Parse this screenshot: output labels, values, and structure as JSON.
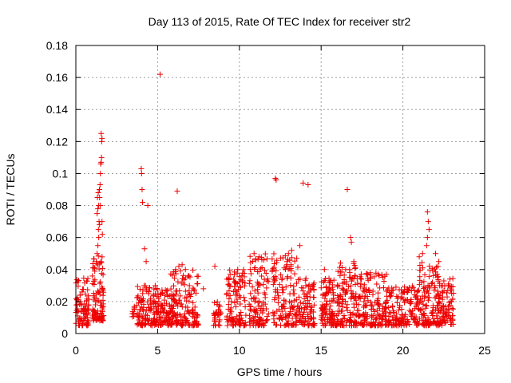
{
  "chart_data": {
    "type": "scatter",
    "title": "Day 113 of 2015, Rate Of TEC Index for receiver str2",
    "xlabel": "GPS time / hours",
    "ylabel": "ROTI / TECUs",
    "xlim": [
      0,
      25
    ],
    "ylim": [
      0,
      0.18
    ],
    "xticks": [
      "0",
      "5",
      "10",
      "15",
      "20",
      "25"
    ],
    "yticks": [
      "0",
      "0.02",
      "0.04",
      "0.06",
      "0.08",
      "0.1",
      "0.12",
      "0.14",
      "0.16",
      "0.18"
    ],
    "grid": true,
    "marker": "+",
    "color": "#ee0000",
    "series": [
      {
        "name": "str2",
        "clusters": [
          {
            "x_range": [
              0.0,
              0.8
            ],
            "y_range": [
              0.005,
              0.035
            ],
            "count": 90
          },
          {
            "x_range": [
              1.0,
              1.7
            ],
            "y_range": [
              0.008,
              0.05
            ],
            "count": 100
          },
          {
            "x_range": [
              3.4,
              3.6
            ],
            "y_range": [
              0.01,
              0.02
            ],
            "count": 10
          },
          {
            "x_range": [
              3.7,
              5.0
            ],
            "y_range": [
              0.005,
              0.03
            ],
            "count": 120
          },
          {
            "x_range": [
              5.0,
              6.0
            ],
            "y_range": [
              0.005,
              0.028
            ],
            "count": 90
          },
          {
            "x_range": [
              5.8,
              7.5
            ],
            "y_range": [
              0.005,
              0.04
            ],
            "count": 140
          },
          {
            "x_range": [
              8.4,
              8.9
            ],
            "y_range": [
              0.005,
              0.02
            ],
            "count": 30
          },
          {
            "x_range": [
              9.2,
              10.4
            ],
            "y_range": [
              0.005,
              0.04
            ],
            "count": 110
          },
          {
            "x_range": [
              10.6,
              11.8
            ],
            "y_range": [
              0.005,
              0.05
            ],
            "count": 110
          },
          {
            "x_range": [
              12.0,
              13.6
            ],
            "y_range": [
              0.005,
              0.05
            ],
            "count": 140
          },
          {
            "x_range": [
              13.6,
              14.6
            ],
            "y_range": [
              0.005,
              0.035
            ],
            "count": 90
          },
          {
            "x_range": [
              15.0,
              16.0
            ],
            "y_range": [
              0.005,
              0.035
            ],
            "count": 110
          },
          {
            "x_range": [
              16.0,
              17.2
            ],
            "y_range": [
              0.005,
              0.045
            ],
            "count": 120
          },
          {
            "x_range": [
              17.2,
              19.0
            ],
            "y_range": [
              0.005,
              0.038
            ],
            "count": 160
          },
          {
            "x_range": [
              19.0,
              21.0
            ],
            "y_range": [
              0.005,
              0.03
            ],
            "count": 160
          },
          {
            "x_range": [
              21.0,
              22.2
            ],
            "y_range": [
              0.005,
              0.045
            ],
            "count": 130
          },
          {
            "x_range": [
              22.2,
              23.1
            ],
            "y_range": [
              0.005,
              0.035
            ],
            "count": 90
          }
        ],
        "points": [
          [
            1.35,
            0.055
          ],
          [
            1.4,
            0.06
          ],
          [
            1.38,
            0.065
          ],
          [
            1.42,
            0.07
          ],
          [
            1.45,
            0.068
          ],
          [
            1.3,
            0.075
          ],
          [
            1.35,
            0.078
          ],
          [
            1.4,
            0.08
          ],
          [
            1.32,
            0.085
          ],
          [
            1.37,
            0.088
          ],
          [
            1.44,
            0.09
          ],
          [
            1.48,
            0.093
          ],
          [
            1.5,
            0.1
          ],
          [
            1.52,
            0.106
          ],
          [
            1.55,
            0.107
          ],
          [
            1.58,
            0.12
          ],
          [
            1.6,
            0.122
          ],
          [
            1.55,
            0.125
          ],
          [
            1.57,
            0.11
          ],
          [
            1.5,
            0.08
          ],
          [
            1.45,
            0.085
          ],
          [
            1.3,
            0.05
          ],
          [
            1.25,
            0.045
          ],
          [
            1.6,
            0.07
          ],
          [
            1.62,
            0.062
          ],
          [
            4.0,
            0.103
          ],
          [
            4.02,
            0.1
          ],
          [
            4.05,
            0.09
          ],
          [
            4.08,
            0.082
          ],
          [
            4.4,
            0.08
          ],
          [
            5.15,
            0.162
          ],
          [
            6.2,
            0.089
          ],
          [
            6.1,
            0.04
          ],
          [
            6.3,
            0.042
          ],
          [
            6.5,
            0.043
          ],
          [
            6.7,
            0.04
          ],
          [
            4.2,
            0.053
          ],
          [
            4.3,
            0.045
          ],
          [
            12.2,
            0.097
          ],
          [
            12.25,
            0.096
          ],
          [
            13.9,
            0.094
          ],
          [
            14.2,
            0.093
          ],
          [
            16.6,
            0.09
          ],
          [
            16.8,
            0.06
          ],
          [
            16.85,
            0.057
          ],
          [
            21.5,
            0.076
          ],
          [
            21.55,
            0.07
          ],
          [
            21.6,
            0.065
          ],
          [
            21.5,
            0.06
          ],
          [
            21.45,
            0.055
          ],
          [
            21.0,
            0.048
          ],
          [
            21.2,
            0.05
          ],
          [
            22.0,
            0.05
          ],
          [
            22.2,
            0.045
          ],
          [
            13.7,
            0.055
          ],
          [
            13.0,
            0.05
          ],
          [
            13.2,
            0.052
          ],
          [
            11.2,
            0.048
          ],
          [
            11.5,
            0.046
          ],
          [
            10.9,
            0.05
          ],
          [
            9.9,
            0.04
          ],
          [
            8.5,
            0.042
          ],
          [
            7.8,
            0.028
          ],
          [
            18.0,
            0.038
          ],
          [
            18.5,
            0.037
          ],
          [
            15.2,
            0.04
          ],
          [
            16.5,
            0.04
          ],
          [
            17.0,
            0.045
          ]
        ]
      }
    ]
  }
}
